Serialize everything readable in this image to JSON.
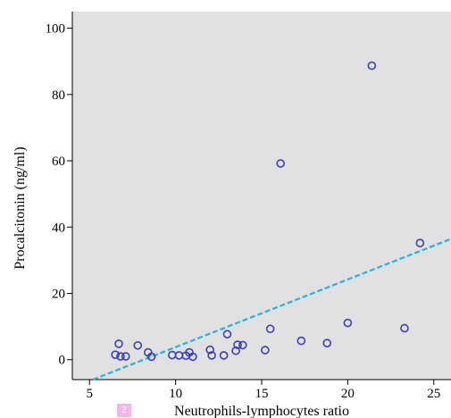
{
  "chart_data": {
    "type": "scatter",
    "title": "",
    "xlabel": "Neutrophils-lymphocytes ratio",
    "ylabel": "Procalcitonin (ng/ml)",
    "xlim": [
      4,
      26
    ],
    "ylim": [
      -6,
      105
    ],
    "xticks": [
      5,
      10,
      15,
      20,
      25
    ],
    "yticks": [
      0,
      20,
      40,
      60,
      80,
      100
    ],
    "grid": false,
    "background": "#e1e1e1",
    "marker_color": "#3b3bbf",
    "fit_line_color": "#1fb3e6",
    "fit_line_style": "dashed",
    "fit_line": {
      "slope": 2.04,
      "intercept": -16.6
    },
    "points": [
      {
        "x": 6.5,
        "y": 1.5
      },
      {
        "x": 6.7,
        "y": 4.8
      },
      {
        "x": 6.8,
        "y": 1.0
      },
      {
        "x": 7.1,
        "y": 1.0
      },
      {
        "x": 7.8,
        "y": 4.3
      },
      {
        "x": 8.4,
        "y": 2.2
      },
      {
        "x": 8.6,
        "y": 0.9
      },
      {
        "x": 9.8,
        "y": 1.4
      },
      {
        "x": 10.2,
        "y": 1.3
      },
      {
        "x": 10.6,
        "y": 1.2
      },
      {
        "x": 10.8,
        "y": 2.2
      },
      {
        "x": 11.0,
        "y": 0.9
      },
      {
        "x": 12.0,
        "y": 3.0
      },
      {
        "x": 12.1,
        "y": 1.3
      },
      {
        "x": 12.8,
        "y": 1.3
      },
      {
        "x": 13.0,
        "y": 7.7
      },
      {
        "x": 13.5,
        "y": 2.7
      },
      {
        "x": 13.6,
        "y": 4.5
      },
      {
        "x": 13.9,
        "y": 4.4
      },
      {
        "x": 15.2,
        "y": 2.9
      },
      {
        "x": 15.5,
        "y": 9.3
      },
      {
        "x": 16.1,
        "y": 59.2
      },
      {
        "x": 17.3,
        "y": 5.7
      },
      {
        "x": 18.8,
        "y": 5.0
      },
      {
        "x": 20.0,
        "y": 11.1
      },
      {
        "x": 21.4,
        "y": 88.7
      },
      {
        "x": 23.3,
        "y": 9.5
      },
      {
        "x": 24.2,
        "y": 35.2
      }
    ]
  },
  "badge": {
    "text": "2"
  }
}
